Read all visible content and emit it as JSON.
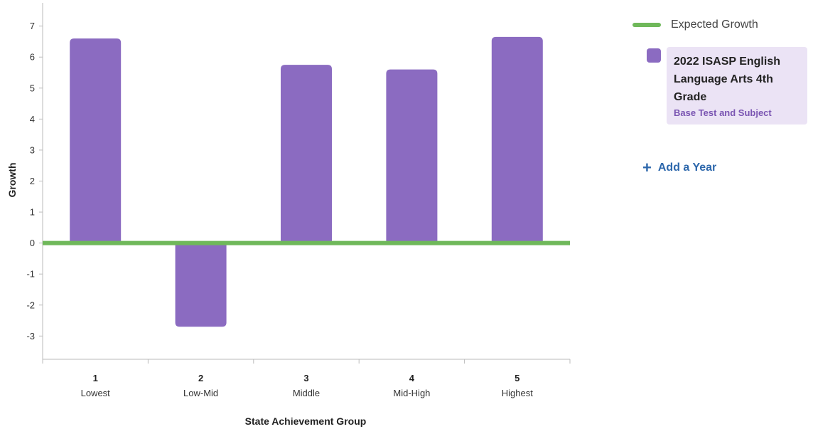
{
  "chart_data": {
    "type": "bar",
    "categories": [
      "1",
      "2",
      "3",
      "4",
      "5"
    ],
    "category_labels": [
      "Lowest",
      "Low-Mid",
      "Middle",
      "Mid-High",
      "Highest"
    ],
    "series": [
      {
        "name": "2022 ISASP English Language Arts 4th Grade",
        "values": [
          6.6,
          -2.7,
          5.75,
          5.6,
          6.65
        ],
        "color": "#8b6bc1"
      }
    ],
    "reference_line": {
      "name": "Expected Growth",
      "value": 0,
      "color": "#6fb85a"
    },
    "xlabel": "State Achievement Group",
    "ylabel": "Growth",
    "ylim": [
      -3.75,
      7.75
    ],
    "yticks": [
      -3,
      -2,
      -1,
      0,
      1,
      2,
      3,
      4,
      5,
      6,
      7
    ],
    "grid": false,
    "legend_position": "right"
  },
  "legend": {
    "expected_label": "Expected Growth",
    "series_title": "2022 ISASP English Language Arts 4th Grade",
    "series_subtitle": "Base Test and Subject"
  },
  "actions": {
    "add_year_label": "Add a Year"
  }
}
